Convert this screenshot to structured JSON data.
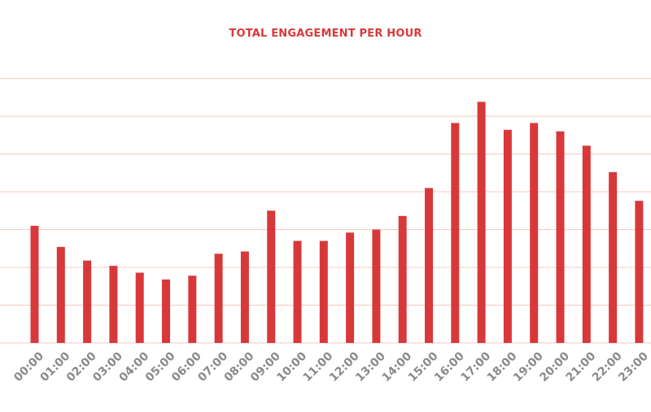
{
  "chart_data": {
    "type": "bar",
    "title": "TOTAL ENGAGEMENT PER HOUR",
    "xlabel": "",
    "ylabel": "",
    "categories": [
      "00:00",
      "01:00",
      "02:00",
      "03:00",
      "04:00",
      "05:00",
      "06:00",
      "07:00",
      "08:00",
      "09:00",
      "10:00",
      "11:00",
      "12:00",
      "13:00",
      "14:00",
      "15:00",
      "16:00",
      "17:00",
      "18:00",
      "19:00",
      "20:00",
      "21:00",
      "22:00",
      "23:00"
    ],
    "values": [
      3.1,
      2.54,
      2.18,
      2.04,
      1.86,
      1.68,
      1.78,
      2.36,
      2.42,
      3.5,
      2.7,
      2.7,
      2.92,
      3.0,
      3.36,
      4.1,
      5.82,
      6.38,
      5.64,
      5.82,
      5.6,
      5.22,
      4.52,
      3.76
    ],
    "ylim": [
      0,
      7
    ],
    "grid": true,
    "colors": {
      "bar": "#d9383a",
      "grid": "#f6c9c0",
      "title": "#d9383a",
      "tick": "#8a8a8a"
    }
  }
}
